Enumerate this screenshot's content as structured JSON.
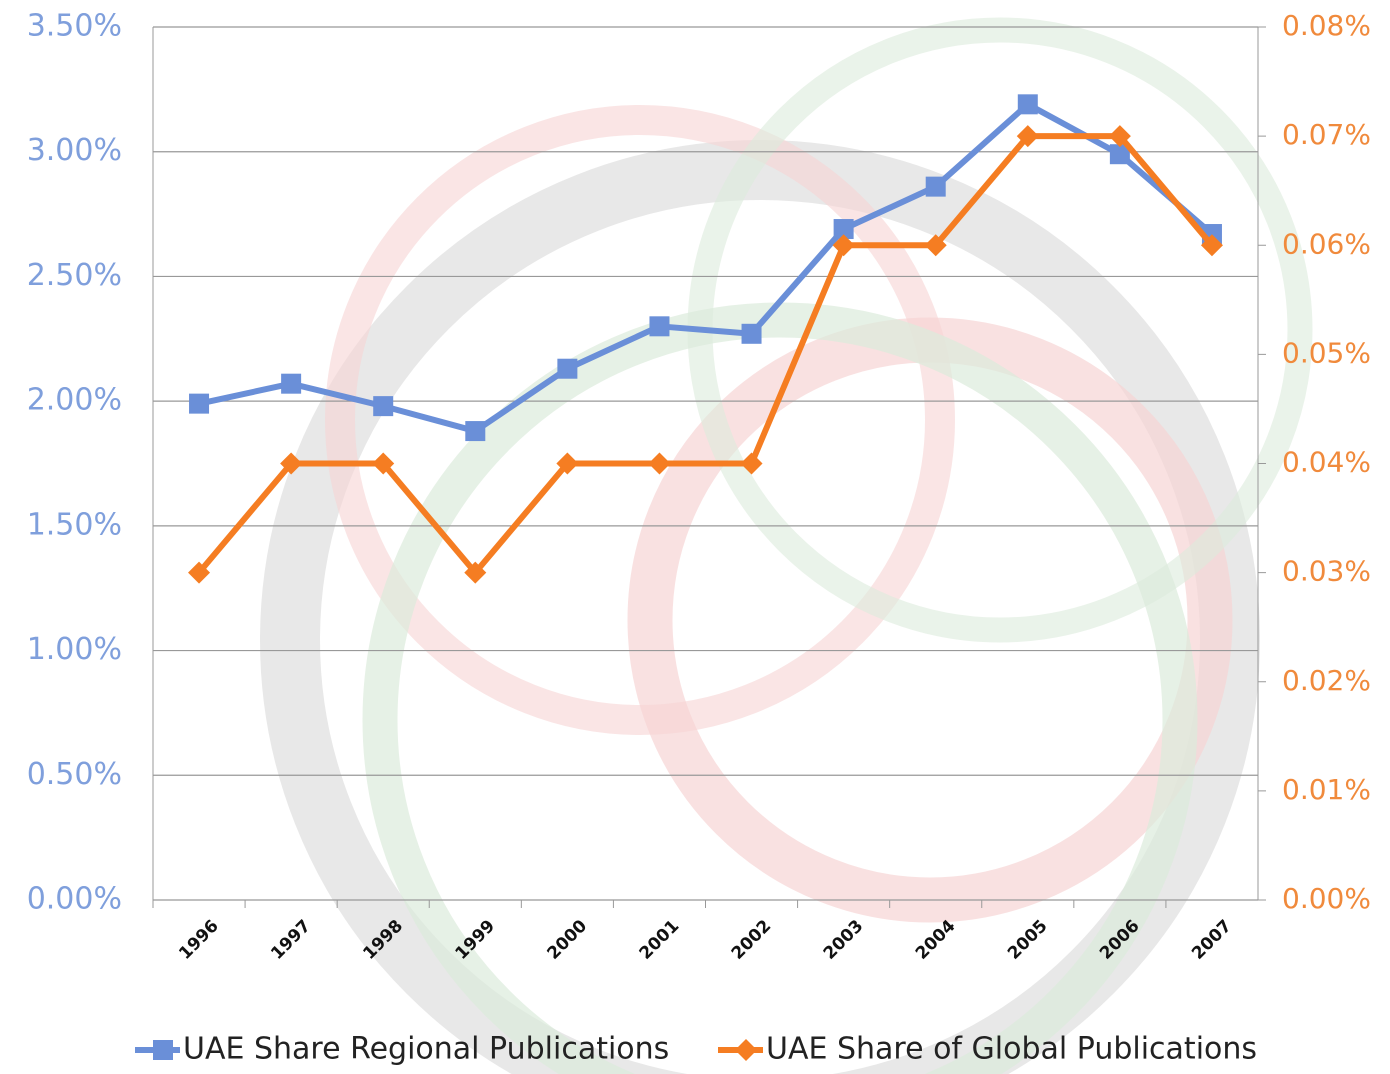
{
  "chart_data": {
    "type": "line",
    "categories": [
      "1996",
      "1997",
      "1998",
      "1999",
      "2000",
      "2001",
      "2002",
      "2003",
      "2004",
      "2005",
      "2006",
      "2007"
    ],
    "series": [
      {
        "name": "UAE Share Regional Publications",
        "color": "#6a8fd8",
        "marker": "square",
        "values": [
          1.99,
          2.07,
          1.98,
          1.88,
          2.13,
          2.3,
          2.27,
          2.69,
          2.86,
          3.19,
          2.99,
          2.67
        ]
      },
      {
        "name": "UAE Share of Global Publications",
        "color": "#f57d22",
        "marker": "diamond",
        "axis": "y2",
        "values": [
          0.03,
          0.04,
          0.04,
          0.03,
          0.04,
          0.04,
          0.04,
          0.06,
          0.06,
          0.07,
          0.07,
          0.06
        ]
      }
    ],
    "ylim": [
      0,
      3.5
    ],
    "yticks": [
      {
        "value": 0,
        "label": "0.00%"
      },
      {
        "value": 0.5,
        "label": "0.50%"
      },
      {
        "value": 1,
        "label": "1.00%"
      },
      {
        "value": 1.5,
        "label": "1.50%"
      },
      {
        "value": 2,
        "label": "2.00%"
      },
      {
        "value": 2.5,
        "label": "2.50%"
      },
      {
        "value": 3,
        "label": "3.00%"
      },
      {
        "value": 3.5,
        "label": "3.50%"
      }
    ],
    "y2lim": [
      0,
      0.08
    ],
    "y2ticks": [
      {
        "value": 0,
        "label": "0.00%"
      },
      {
        "value": 0.01,
        "label": "0.01%"
      },
      {
        "value": 0.02,
        "label": "0.02%"
      },
      {
        "value": 0.03,
        "label": "0.03%"
      },
      {
        "value": 0.04,
        "label": "0.04%"
      },
      {
        "value": 0.05,
        "label": "0.05%"
      },
      {
        "value": 0.06,
        "label": "0.06%"
      },
      {
        "value": 0.07,
        "label": "0.07%"
      },
      {
        "value": 0.08,
        "label": "0.08%"
      }
    ],
    "grid": true,
    "legend": "bottom"
  }
}
